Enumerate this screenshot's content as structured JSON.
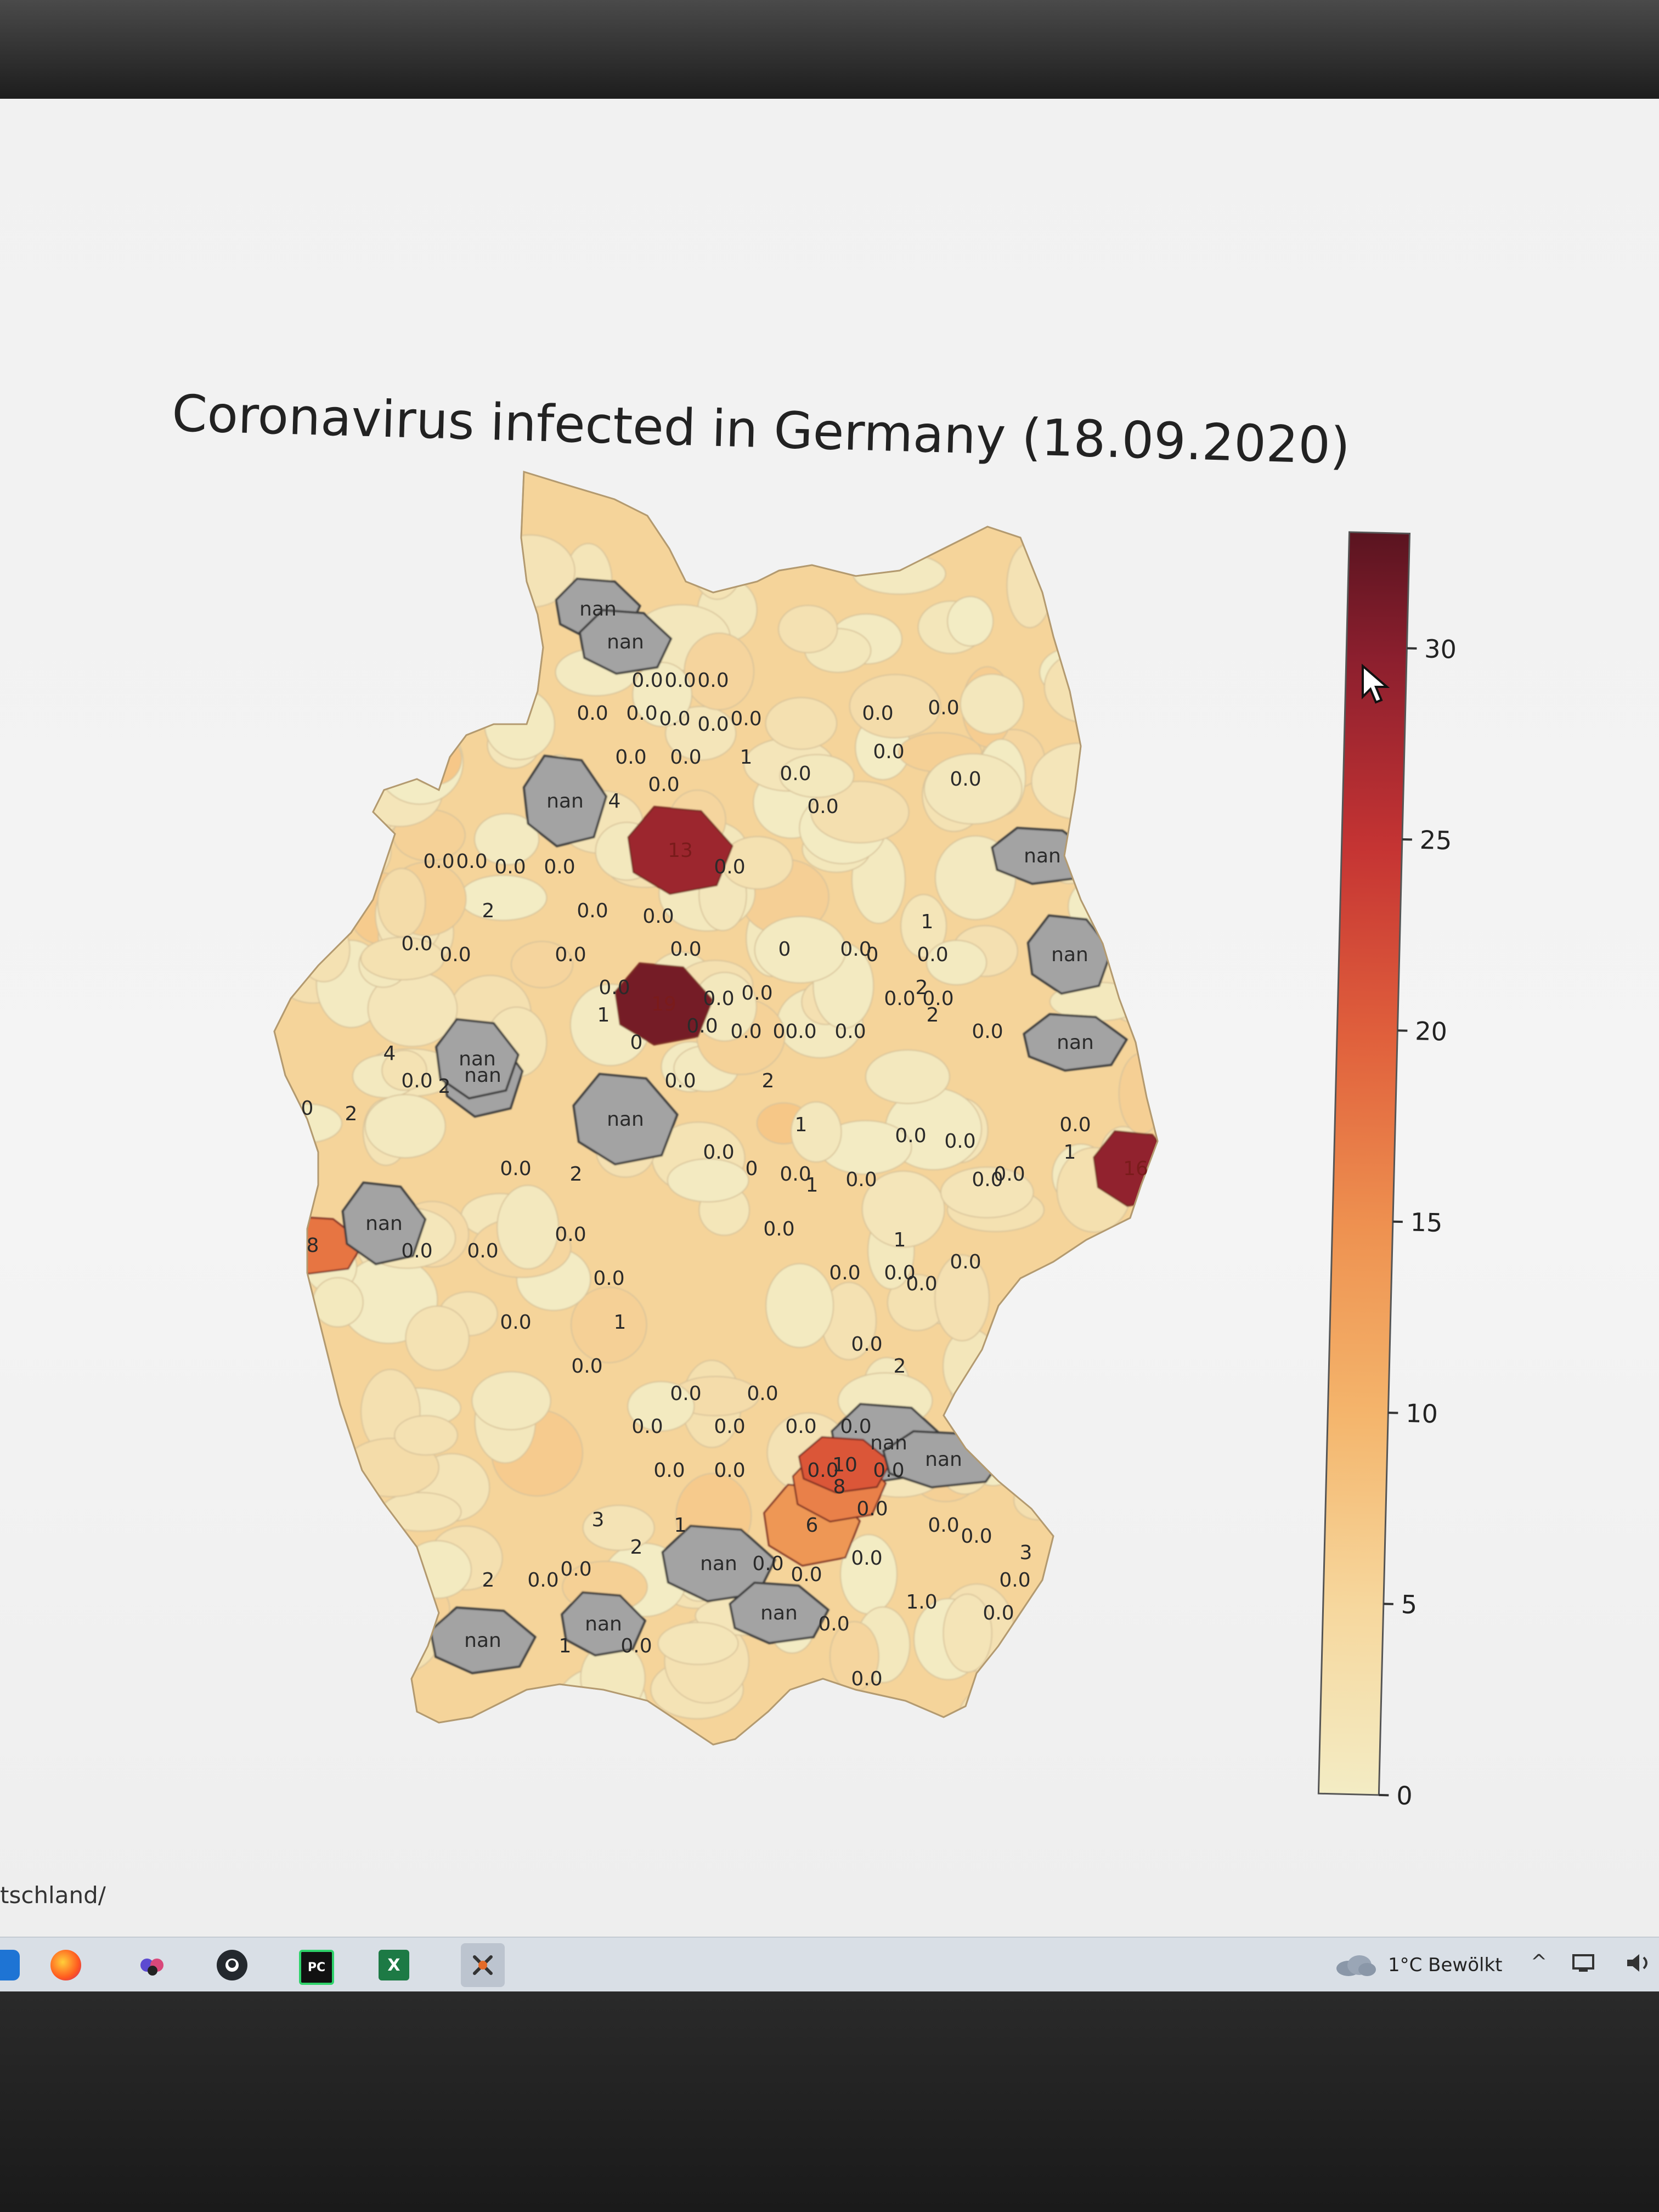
{
  "figure": {
    "title": "Coronavirus infected in Germany (18.09.2020)"
  },
  "colorbar": {
    "ticks": [
      "0",
      "5",
      "10",
      "15",
      "20",
      "25",
      "30"
    ],
    "tick_values": [
      0,
      5,
      10,
      15,
      20,
      25,
      30
    ],
    "range": [
      0,
      33
    ],
    "colors": [
      "#f3ecc4",
      "#f6c98a",
      "#f1a25a",
      "#e3643b",
      "#c53433",
      "#8c1f2e",
      "#5a1420"
    ]
  },
  "map": {
    "missing_color": "#a3a3a3",
    "missing_label": "nan",
    "labels": [
      {
        "text": "nan",
        "nan": true
      },
      {
        "text": "nan",
        "nan": true
      },
      {
        "text": "0.0"
      },
      {
        "text": "0.0"
      },
      {
        "text": "0.0"
      },
      {
        "text": "0.0"
      },
      {
        "text": "0.0"
      },
      {
        "text": "0.0"
      },
      {
        "text": "0.0"
      },
      {
        "text": "0.0"
      },
      {
        "text": "0.0"
      },
      {
        "text": "1"
      },
      {
        "text": "0.0"
      },
      {
        "text": "0.0"
      },
      {
        "text": "4"
      },
      {
        "text": "nan",
        "nan": true
      },
      {
        "text": "13",
        "v": 26
      },
      {
        "text": "0.0"
      },
      {
        "text": "0.0"
      },
      {
        "text": "0.0"
      },
      {
        "text": "0.0"
      },
      {
        "text": "0.0"
      },
      {
        "text": "nan",
        "nan": true
      },
      {
        "text": "0.0"
      },
      {
        "text": "0.0"
      },
      {
        "text": "0.0"
      },
      {
        "text": "0.0"
      },
      {
        "text": "0.0"
      },
      {
        "text": "0.0"
      },
      {
        "text": "0.0"
      },
      {
        "text": "0.0"
      },
      {
        "text": "0.0"
      },
      {
        "text": "0"
      },
      {
        "text": "0.0"
      },
      {
        "text": "1"
      },
      {
        "text": "0.0"
      },
      {
        "text": "nan",
        "nan": true
      },
      {
        "text": "0.0"
      },
      {
        "text": "0.0"
      },
      {
        "text": "2"
      },
      {
        "text": "0.0"
      },
      {
        "text": "0.0"
      },
      {
        "text": "0.0"
      },
      {
        "text": "0.0"
      },
      {
        "text": "0.0"
      },
      {
        "text": "0.0"
      },
      {
        "text": "0.0"
      },
      {
        "text": "0"
      },
      {
        "text": "0.0"
      },
      {
        "text": "0"
      },
      {
        "text": "2"
      },
      {
        "text": "2"
      },
      {
        "text": "nan",
        "nan": true
      },
      {
        "text": "0.0"
      },
      {
        "text": "19",
        "v": 30
      },
      {
        "text": "1"
      },
      {
        "text": "0.0"
      },
      {
        "text": "0.0"
      },
      {
        "text": "0"
      },
      {
        "text": "0.0"
      },
      {
        "text": "4"
      },
      {
        "text": "0.0"
      },
      {
        "text": "nan",
        "nan": true
      },
      {
        "text": "nan",
        "nan": true
      },
      {
        "text": "2"
      },
      {
        "text": "0"
      },
      {
        "text": "2"
      },
      {
        "text": "nan",
        "nan": true
      },
      {
        "text": "0.0"
      },
      {
        "text": "2"
      },
      {
        "text": "1"
      },
      {
        "text": "0.0"
      },
      {
        "text": "0.0"
      },
      {
        "text": "0.0"
      },
      {
        "text": "0.0"
      },
      {
        "text": "1"
      },
      {
        "text": "0.0"
      },
      {
        "text": "0"
      },
      {
        "text": "1"
      },
      {
        "text": "0.0"
      },
      {
        "text": "0.0"
      },
      {
        "text": "0.0"
      },
      {
        "text": "2"
      },
      {
        "text": "0.0"
      },
      {
        "text": "0.0"
      },
      {
        "text": "0.0"
      },
      {
        "text": "16",
        "v": 27
      },
      {
        "text": "1"
      },
      {
        "text": "0.0"
      },
      {
        "text": "0.0"
      },
      {
        "text": "0.0"
      },
      {
        "text": "0.0"
      },
      {
        "text": "8",
        "v": 15
      },
      {
        "text": "nan",
        "nan": true
      },
      {
        "text": "0.0"
      },
      {
        "text": "0.0"
      },
      {
        "text": "1"
      },
      {
        "text": "0.0"
      },
      {
        "text": "0.0"
      },
      {
        "text": "0.0"
      },
      {
        "text": "0.0"
      },
      {
        "text": "0.0"
      },
      {
        "text": "2"
      },
      {
        "text": "0.0"
      },
      {
        "text": "0.0"
      },
      {
        "text": "0.0"
      },
      {
        "text": "0.0"
      },
      {
        "text": "nan",
        "nan": true
      },
      {
        "text": "0.0"
      },
      {
        "text": "0.0"
      },
      {
        "text": "0.0"
      },
      {
        "text": "0.0"
      },
      {
        "text": "0.0"
      },
      {
        "text": "6",
        "v": 12
      },
      {
        "text": "8",
        "v": 14
      },
      {
        "text": "0.0"
      },
      {
        "text": "10",
        "v": 18
      },
      {
        "text": "nan",
        "nan": true
      },
      {
        "text": "0.0"
      },
      {
        "text": "0.0"
      },
      {
        "text": "3"
      },
      {
        "text": "2"
      },
      {
        "text": "0.0"
      },
      {
        "text": "1"
      },
      {
        "text": "nan",
        "nan": true
      },
      {
        "text": "0.0"
      },
      {
        "text": "0.0"
      },
      {
        "text": "3"
      },
      {
        "text": "2"
      },
      {
        "text": "0.0"
      },
      {
        "text": "nan",
        "nan": true
      },
      {
        "text": "nan",
        "nan": true
      },
      {
        "text": "0.0"
      },
      {
        "text": "1.0"
      },
      {
        "text": "0.0"
      },
      {
        "text": "0.0"
      },
      {
        "text": "nan",
        "nan": true
      },
      {
        "text": "1"
      },
      {
        "text": "0.0"
      },
      {
        "text": "0.0"
      }
    ]
  },
  "page": {
    "url_fragment": "tschland/"
  },
  "taskbar": {
    "icons": [
      "windows-icon",
      "firefox-icon",
      "people-icon",
      "github-icon",
      "pycharm-icon",
      "excel-icon",
      "tools-icon"
    ],
    "pycharm_label": "PC",
    "excel_label": "X",
    "weather": "1°C  Bewölkt",
    "tray_chevron": "^"
  }
}
